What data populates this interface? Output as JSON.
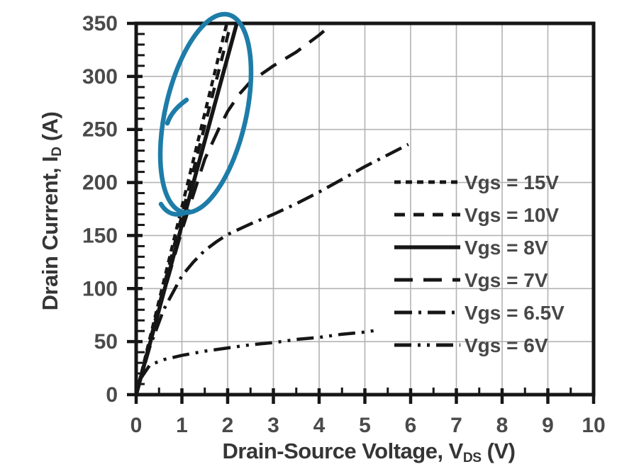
{
  "chart_data": {
    "type": "line",
    "title": "",
    "xlabel_pre": "Drain-Source Voltage, V",
    "xlabel_sub": "DS",
    "xlabel_post": " (V)",
    "ylabel_pre": "Drain Current, I",
    "ylabel_sub": "D",
    "ylabel_post": " (A)",
    "xlim": [
      0,
      10
    ],
    "ylim": [
      0,
      350
    ],
    "xticks": [
      0,
      1,
      2,
      3,
      4,
      5,
      6,
      7,
      8,
      9,
      10
    ],
    "yticks": [
      0,
      50,
      100,
      150,
      200,
      250,
      300,
      350
    ],
    "x_minor_step": 0.5,
    "y_minor_step": 10,
    "grid": true,
    "legend_position": "inside-right",
    "colors": {
      "curve": "#161616",
      "frame": "#161616",
      "grid": "#b3b3b3",
      "tick_text": "#4a4a4a",
      "legend_text": "#474747",
      "annotation": "#1e7ca8"
    },
    "series": [
      {
        "name": "Vgs = 15V",
        "dash": "fine",
        "points": [
          [
            0,
            0
          ],
          [
            1,
            177
          ],
          [
            1.98,
            350
          ]
        ]
      },
      {
        "name": "Vgs = 10V",
        "dash": "medium",
        "points": [
          [
            0,
            0
          ],
          [
            1,
            169
          ],
          [
            2.07,
            350
          ]
        ]
      },
      {
        "name": "Vgs = 8V",
        "dash": "solid",
        "points": [
          [
            0,
            0
          ],
          [
            1,
            160
          ],
          [
            2.2,
            350
          ]
        ]
      },
      {
        "name": "Vgs = 7V",
        "dash": "long",
        "points": [
          [
            0,
            0
          ],
          [
            0.5,
            80
          ],
          [
            1,
            155
          ],
          [
            1.5,
            222
          ],
          [
            1.8,
            250
          ],
          [
            2,
            267
          ],
          [
            2.25,
            283
          ],
          [
            2.5,
            295
          ],
          [
            3,
            310
          ],
          [
            3.5,
            323
          ],
          [
            4,
            339
          ],
          [
            4.3,
            350
          ]
        ]
      },
      {
        "name": "Vgs = 6.5V",
        "dash": "dashdot",
        "points": [
          [
            0,
            0
          ],
          [
            0.3,
            45
          ],
          [
            0.6,
            80
          ],
          [
            1,
            112
          ],
          [
            1.25,
            125
          ],
          [
            1.5,
            136
          ],
          [
            1.75,
            144
          ],
          [
            2,
            151
          ],
          [
            2.5,
            161
          ],
          [
            3,
            170
          ],
          [
            3.5,
            180
          ],
          [
            4,
            191
          ],
          [
            4.5,
            203
          ],
          [
            5,
            215
          ],
          [
            5.5,
            226
          ],
          [
            5.95,
            236
          ]
        ]
      },
      {
        "name": "Vgs = 6V",
        "dash": "dashdotdot",
        "points": [
          [
            0.08,
            14
          ],
          [
            0.3,
            28
          ],
          [
            0.6,
            33
          ],
          [
            1,
            37
          ],
          [
            1.5,
            41
          ],
          [
            2,
            44
          ],
          [
            2.5,
            47
          ],
          [
            3,
            49
          ],
          [
            3.5,
            52
          ],
          [
            4,
            54
          ],
          [
            4.5,
            57
          ],
          [
            5,
            59
          ],
          [
            5.3,
            61
          ]
        ]
      }
    ],
    "annotation": {
      "type": "hand-drawn-ellipse",
      "description": "Blue freehand ellipse circling the steep Vgs = 15V/10V/8V curve bundle",
      "color": "#1e7ca8"
    }
  }
}
